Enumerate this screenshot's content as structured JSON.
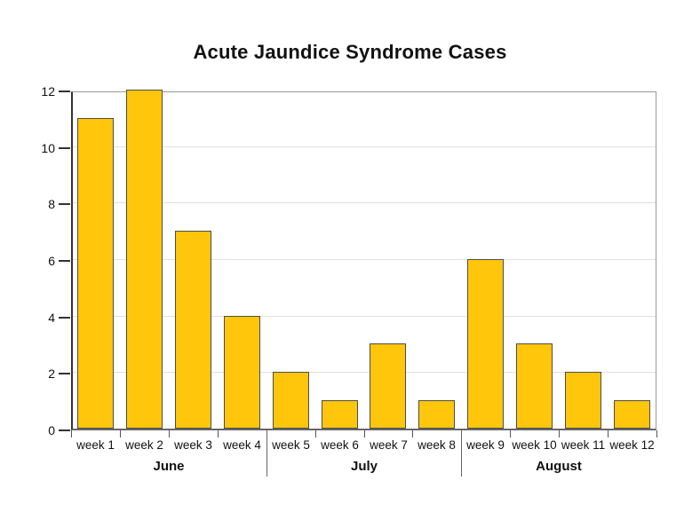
{
  "chart_data": {
    "type": "bar",
    "title": "Acute Jaundice Syndrome Cases",
    "categories": [
      "week 1",
      "week 2",
      "week 3",
      "week 4",
      "week 5",
      "week 6",
      "week 7",
      "week 8",
      "week 9",
      "week 10",
      "week 11",
      "week 12"
    ],
    "values": [
      11,
      12,
      7,
      4,
      2,
      1,
      3,
      1,
      6,
      3,
      2,
      1
    ],
    "month_groups": [
      {
        "label": "June",
        "span": 4
      },
      {
        "label": "July",
        "span": 4
      },
      {
        "label": "August",
        "span": 4
      }
    ],
    "xlabel": "",
    "ylabel": "",
    "ylim": [
      0,
      12
    ],
    "yticks": [
      0,
      2,
      4,
      6,
      8,
      10,
      12
    ],
    "grid": "horizontal-light",
    "legend": "none",
    "colors": {
      "bar_fill": "#FFC60B",
      "bar_border": "#4D4D4D",
      "gridline": "#E0E0E0",
      "axis_left": "#333333",
      "axis_bottom": "#666666",
      "frame": "#999999",
      "text": "#111111"
    }
  }
}
